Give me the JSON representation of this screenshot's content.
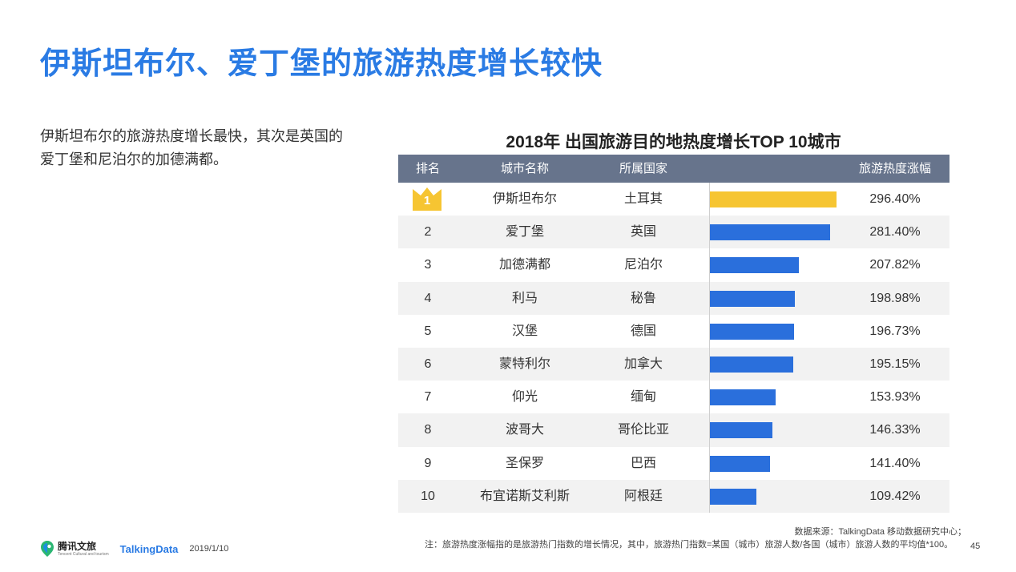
{
  "page": {
    "title": "伊斯坦布尔、爱丁堡的旅游热度增长较快",
    "description": "伊斯坦布尔的旅游热度增长最快，其次是英国的爱丁堡和尼泊尔的加德满都。",
    "page_number": "45"
  },
  "chart_data": {
    "type": "table",
    "title": "2018年 出国旅游目的地热度增长TOP 10城市",
    "columns": [
      "排名",
      "城市名称",
      "所属国家",
      "旅游热度涨幅"
    ],
    "rows": [
      {
        "rank": "1",
        "city": "伊斯坦布尔",
        "country": "土耳其",
        "value": 296.4,
        "label": "296.40%"
      },
      {
        "rank": "2",
        "city": "爱丁堡",
        "country": "英国",
        "value": 281.4,
        "label": "281.40%"
      },
      {
        "rank": "3",
        "city": "加德满都",
        "country": "尼泊尔",
        "value": 207.82,
        "label": "207.82%"
      },
      {
        "rank": "4",
        "city": "利马",
        "country": "秘鲁",
        "value": 198.98,
        "label": "198.98%"
      },
      {
        "rank": "5",
        "city": "汉堡",
        "country": "德国",
        "value": 196.73,
        "label": "196.73%"
      },
      {
        "rank": "6",
        "city": "蒙特利尔",
        "country": "加拿大",
        "value": 195.15,
        "label": "195.15%"
      },
      {
        "rank": "7",
        "city": "仰光",
        "country": "缅甸",
        "value": 153.93,
        "label": "153.93%"
      },
      {
        "rank": "8",
        "city": "波哥大",
        "country": "哥伦比亚",
        "value": 146.33,
        "label": "146.33%"
      },
      {
        "rank": "9",
        "city": "圣保罗",
        "country": "巴西",
        "value": 141.4,
        "label": "141.40%"
      },
      {
        "rank": "10",
        "city": "布宜诺斯艾利斯",
        "country": "阿根廷",
        "value": 109.42,
        "label": "109.42%"
      }
    ],
    "bar_max": 296.4,
    "colors": {
      "top": "#f6c532",
      "bar": "#2a6fdc",
      "header": "#67748c"
    }
  },
  "footer": {
    "source": "数据来源：TalkingData 移动数据研究中心；",
    "note": "注：旅游热度涨幅指的是旅游热门指数的增长情况，其中，旅游热门指数=某国（城市）旅游人数/各国（城市）旅游人数的平均值*100。",
    "logo_tencent": "腾讯文旅",
    "logo_tencent_sub": "Tencent Cultural and tourism",
    "logo_td": "TalkingData",
    "date": "2019/1/10"
  }
}
